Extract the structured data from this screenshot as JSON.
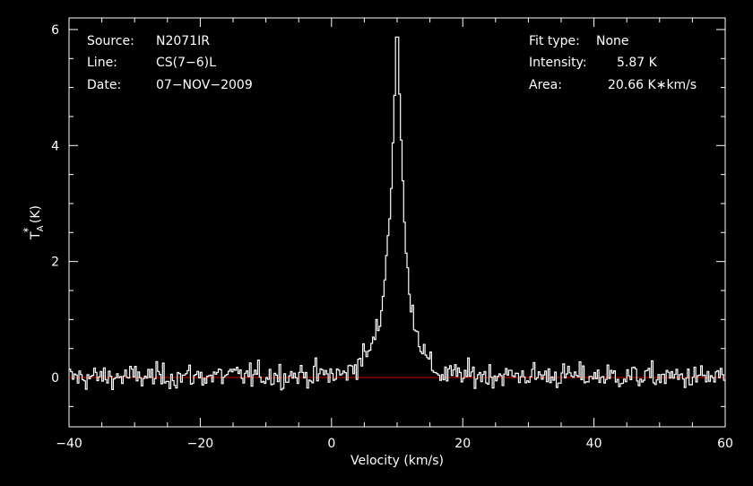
{
  "header_left": {
    "source_label": "Source:",
    "source_value": "N2071IR",
    "line_label": "Line:",
    "line_value": "CS(7−6)L",
    "date_label": "Date:",
    "date_value": "07−NOV−2009"
  },
  "header_right": {
    "fit_label": "Fit type:",
    "fit_value": "None",
    "intensity_label": "Intensity:",
    "intensity_value": "5.87 K",
    "area_label": "Area:",
    "area_value": "20.66 K∗km/s"
  },
  "chart_data": {
    "type": "line",
    "xlabel": "Velocity (km/s)",
    "ylabel_main": "T",
    "ylabel_sub": "A",
    "ylabel_sup": "*",
    "ylabel_unit": " (K)",
    "xlim": [
      -40,
      60
    ],
    "ylim": [
      -0.85,
      6.2
    ],
    "x_ticks": [
      -40,
      -20,
      0,
      20,
      40,
      60
    ],
    "x_tick_labels": [
      "−40",
      "−20",
      "0",
      "20",
      "40",
      "60"
    ],
    "y_ticks": [
      0,
      2,
      4,
      6
    ],
    "y_tick_labels": [
      "0",
      "2",
      "4",
      "6"
    ],
    "baseline": 0,
    "colors": {
      "axes": "#ffffff",
      "spectrum": "#ffffff",
      "baseline": "#cc0000",
      "background": "#000000"
    },
    "spectrum": {
      "channel_width": 0.25,
      "peak_velocity": 10.0,
      "peak_intensity": 5.87,
      "noise_rms": 0.15,
      "profile": [
        {
          "v": -40,
          "t": 0
        },
        {
          "v": 2,
          "t": 0.05
        },
        {
          "v": 4,
          "t": 0.25
        },
        {
          "v": 6,
          "t": 0.5
        },
        {
          "v": 7.5,
          "t": 1.0
        },
        {
          "v": 8.2,
          "t": 1.9
        },
        {
          "v": 8.8,
          "t": 2.6
        },
        {
          "v": 9.3,
          "t": 3.8
        },
        {
          "v": 9.7,
          "t": 5.2
        },
        {
          "v": 10.0,
          "t": 5.87
        },
        {
          "v": 10.3,
          "t": 5.1
        },
        {
          "v": 10.8,
          "t": 3.5
        },
        {
          "v": 11.3,
          "t": 2.2
        },
        {
          "v": 12.0,
          "t": 1.4
        },
        {
          "v": 13.0,
          "t": 0.8
        },
        {
          "v": 14.5,
          "t": 0.3
        },
        {
          "v": 16.5,
          "t": 0.05
        },
        {
          "v": 60,
          "t": 0
        }
      ]
    }
  }
}
